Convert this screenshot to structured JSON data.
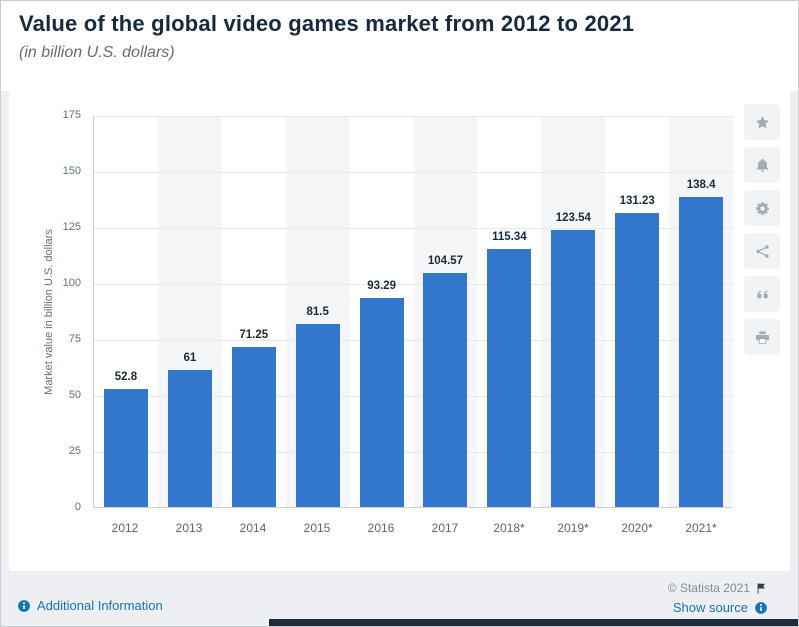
{
  "page": {
    "title": "Value of the global video games market from 2012 to 2021",
    "subtitle": "(in billion U.S. dollars)"
  },
  "chart_data": {
    "type": "bar",
    "title": "Value of the global video games market from 2012 to 2021",
    "subtitle": "(in billion U.S. dollars)",
    "categories": [
      "2012",
      "2013",
      "2014",
      "2015",
      "2016",
      "2017",
      "2018*",
      "2019*",
      "2020*",
      "2021*"
    ],
    "values": [
      52.8,
      61,
      71.25,
      81.5,
      93.29,
      104.57,
      115.34,
      123.54,
      131.23,
      138.4
    ],
    "value_labels": [
      "52.8",
      "61",
      "71.25",
      "81.5",
      "93.29",
      "104.57",
      "115.34",
      "123.54",
      "131.23",
      "138.4"
    ],
    "xlabel": "",
    "ylabel": "Market value in billion U.S. dollars",
    "ylim": [
      0,
      175
    ],
    "yticks": [
      0,
      25,
      50,
      75,
      100,
      125,
      150,
      175
    ],
    "grid": true,
    "legend": "none",
    "bar_color": "#3377cc",
    "stripe_color": "#f5f6f8"
  },
  "toolbar": {
    "icons": [
      "star",
      "bell",
      "gear",
      "share",
      "quote",
      "print"
    ]
  },
  "footer": {
    "additional_information": "Additional Information",
    "copyright": "© Statista 2021",
    "show_source": "Show source"
  },
  "colors": {
    "link_blue": "#1374b8",
    "title_navy": "#16293f"
  }
}
